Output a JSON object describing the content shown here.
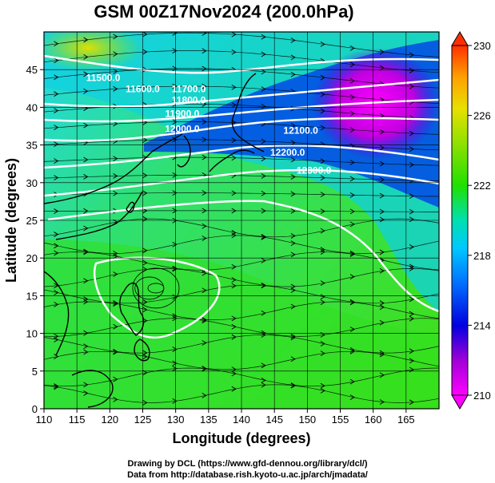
{
  "title": "GSM 00Z17Nov2024 (200.0hPa)",
  "footer": {
    "line1": "Drawing by DCL (https://www.gfd-dennou.org/library/dcl/)",
    "line2": "Data from http://database.rish.kyoto-u.ac.jp/arch/jmadata/"
  },
  "chart_data": {
    "type": "heatmap",
    "title": "GSM 00Z17Nov2024 (200.0hPa)",
    "xlabel": "Longitude (degrees)",
    "ylabel": "Latitude  (degrees)",
    "xlim": [
      110,
      170
    ],
    "ylim": [
      0,
      50
    ],
    "xticks": [
      110,
      115,
      120,
      125,
      130,
      135,
      140,
      145,
      150,
      155,
      160,
      165
    ],
    "yticks": [
      0,
      5,
      10,
      15,
      20,
      25,
      30,
      35,
      40,
      45
    ],
    "grid": true,
    "colorbar": {
      "ticks": [
        210,
        214,
        218,
        222,
        226,
        230
      ],
      "range": [
        210,
        230
      ],
      "colors": [
        "#ff00ff",
        "#b000d0",
        "#0000e0",
        "#0060ff",
        "#00c0ff",
        "#00e0c0",
        "#20e000",
        "#80e000",
        "#e0e000",
        "#ffa000",
        "#ff4000"
      ]
    },
    "contour_labels": [
      {
        "text": "11500.0",
        "lon": 119,
        "lat": 43.5
      },
      {
        "text": "11600.0",
        "lon": 125,
        "lat": 42
      },
      {
        "text": "11700.0",
        "lon": 132,
        "lat": 42
      },
      {
        "text": "11800.0",
        "lon": 132,
        "lat": 40.5
      },
      {
        "text": "11900.0",
        "lon": 131,
        "lat": 38.7
      },
      {
        "text": "12000.0",
        "lon": 131,
        "lat": 36.7
      },
      {
        "text": "12100.0",
        "lon": 149,
        "lat": 36.5
      },
      {
        "text": "12200.0",
        "lon": 147,
        "lat": 33.6
      },
      {
        "text": "12300.0",
        "lon": 151,
        "lat": 31.2
      }
    ]
  }
}
